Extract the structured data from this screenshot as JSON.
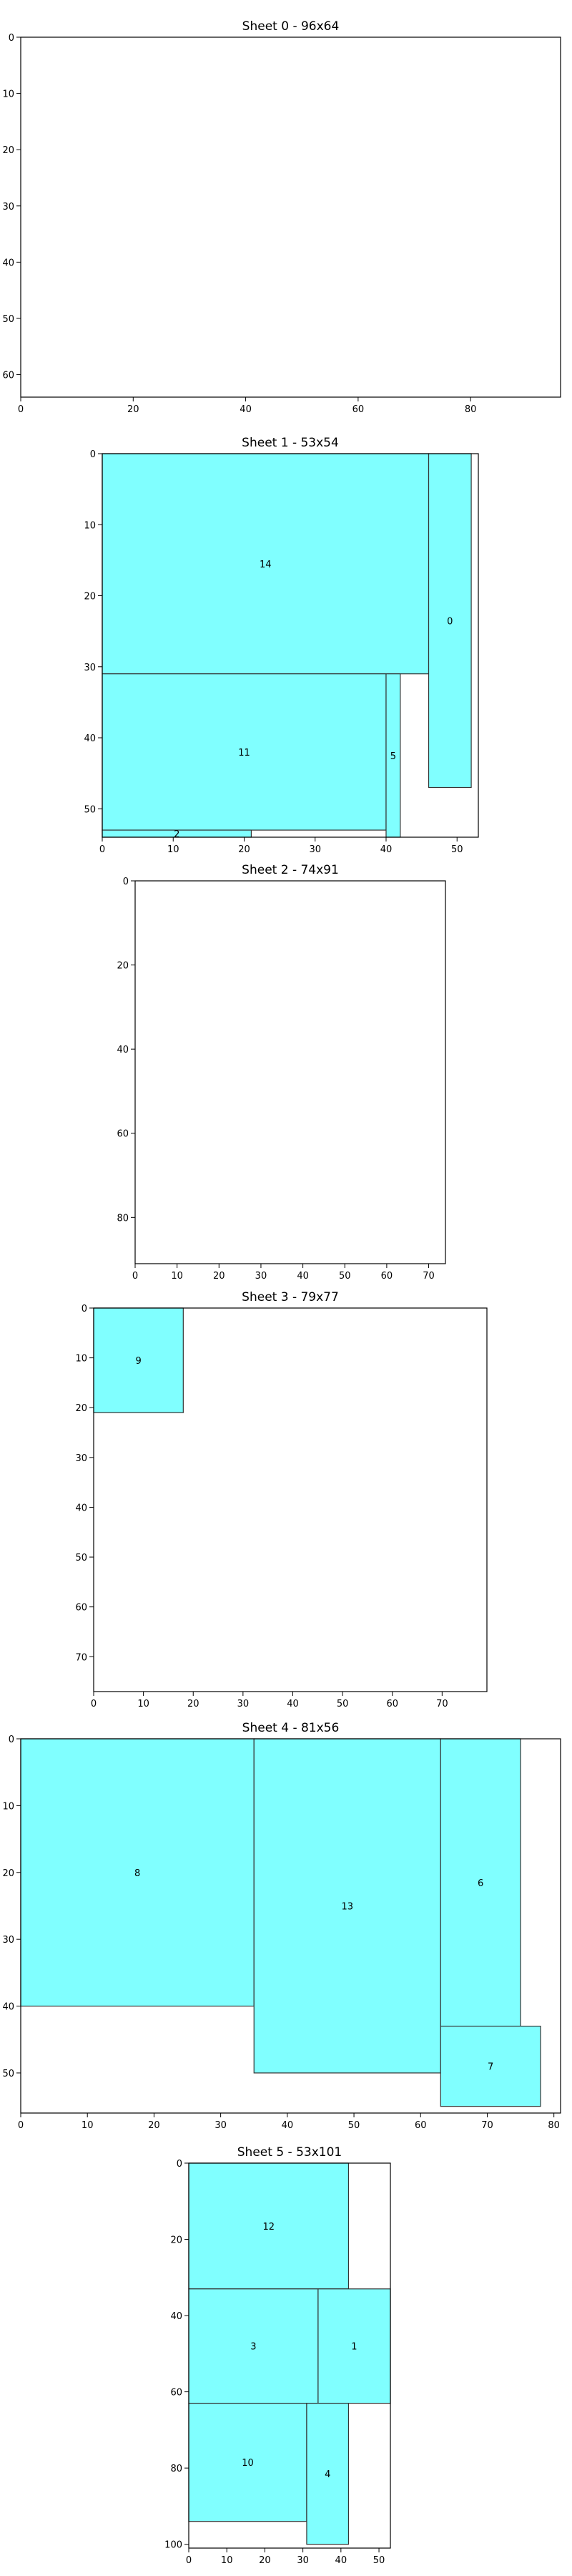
{
  "chart_data": [
    {
      "type": "sheet-layout",
      "title": "Sheet 0 - 96x64",
      "sheet_width": 96,
      "sheet_height": 64,
      "xticks": [
        0,
        20,
        40,
        60,
        80
      ],
      "yticks": [
        0,
        10,
        20,
        30,
        40,
        50,
        60
      ],
      "pieces": []
    },
    {
      "type": "sheet-layout",
      "title": "Sheet 1 - 53x54",
      "sheet_width": 53,
      "sheet_height": 54,
      "xticks": [
        0,
        10,
        20,
        30,
        40,
        50
      ],
      "yticks": [
        0,
        10,
        20,
        30,
        40,
        50
      ],
      "pieces": [
        {
          "id": "14",
          "x": 0,
          "y": 0,
          "w": 46,
          "h": 31
        },
        {
          "id": "0",
          "x": 46,
          "y": 0,
          "w": 6,
          "h": 47
        },
        {
          "id": "11",
          "x": 0,
          "y": 31,
          "w": 40,
          "h": 22
        },
        {
          "id": "5",
          "x": 40,
          "y": 31,
          "w": 2,
          "h": 23
        },
        {
          "id": "2",
          "x": 0,
          "y": 53,
          "w": 21,
          "h": 1
        }
      ]
    },
    {
      "type": "sheet-layout",
      "title": "Sheet 2 - 74x91",
      "sheet_width": 74,
      "sheet_height": 91,
      "xticks": [
        0,
        10,
        20,
        30,
        40,
        50,
        60,
        70
      ],
      "yticks": [
        0,
        20,
        40,
        60,
        80
      ],
      "pieces": []
    },
    {
      "type": "sheet-layout",
      "title": "Sheet 3 - 79x77",
      "sheet_width": 79,
      "sheet_height": 77,
      "xticks": [
        0,
        10,
        20,
        30,
        40,
        50,
        60,
        70
      ],
      "yticks": [
        0,
        10,
        20,
        30,
        40,
        50,
        60,
        70
      ],
      "pieces": [
        {
          "id": "9",
          "x": 0,
          "y": 0,
          "w": 18,
          "h": 21
        }
      ]
    },
    {
      "type": "sheet-layout",
      "title": "Sheet 4 - 81x56",
      "sheet_width": 81,
      "sheet_height": 56,
      "xticks": [
        0,
        10,
        20,
        30,
        40,
        50,
        60,
        70,
        80
      ],
      "yticks": [
        0,
        10,
        20,
        30,
        40,
        50
      ],
      "pieces": [
        {
          "id": "8",
          "x": 0,
          "y": 0,
          "w": 35,
          "h": 40
        },
        {
          "id": "13",
          "x": 35,
          "y": 0,
          "w": 28,
          "h": 50
        },
        {
          "id": "6",
          "x": 63,
          "y": 0,
          "w": 12,
          "h": 43
        },
        {
          "id": "7",
          "x": 63,
          "y": 43,
          "w": 15,
          "h": 12
        }
      ]
    },
    {
      "type": "sheet-layout",
      "title": "Sheet 5 - 53x101",
      "sheet_width": 53,
      "sheet_height": 101,
      "xticks": [
        0,
        10,
        20,
        30,
        40,
        50
      ],
      "yticks": [
        0,
        20,
        40,
        60,
        80,
        100
      ],
      "pieces": [
        {
          "id": "12",
          "x": 0,
          "y": 0,
          "w": 42,
          "h": 33
        },
        {
          "id": "3",
          "x": 0,
          "y": 33,
          "w": 34,
          "h": 30
        },
        {
          "id": "1",
          "x": 34,
          "y": 33,
          "w": 19,
          "h": 30
        },
        {
          "id": "10",
          "x": 0,
          "y": 63,
          "w": 31,
          "h": 31
        },
        {
          "id": "4",
          "x": 31,
          "y": 63,
          "w": 11,
          "h": 37
        }
      ]
    }
  ],
  "colors": {
    "piece_fill": "#80ffff",
    "piece_stroke": "#333333",
    "axes": "#000000",
    "background": "#ffffff"
  }
}
